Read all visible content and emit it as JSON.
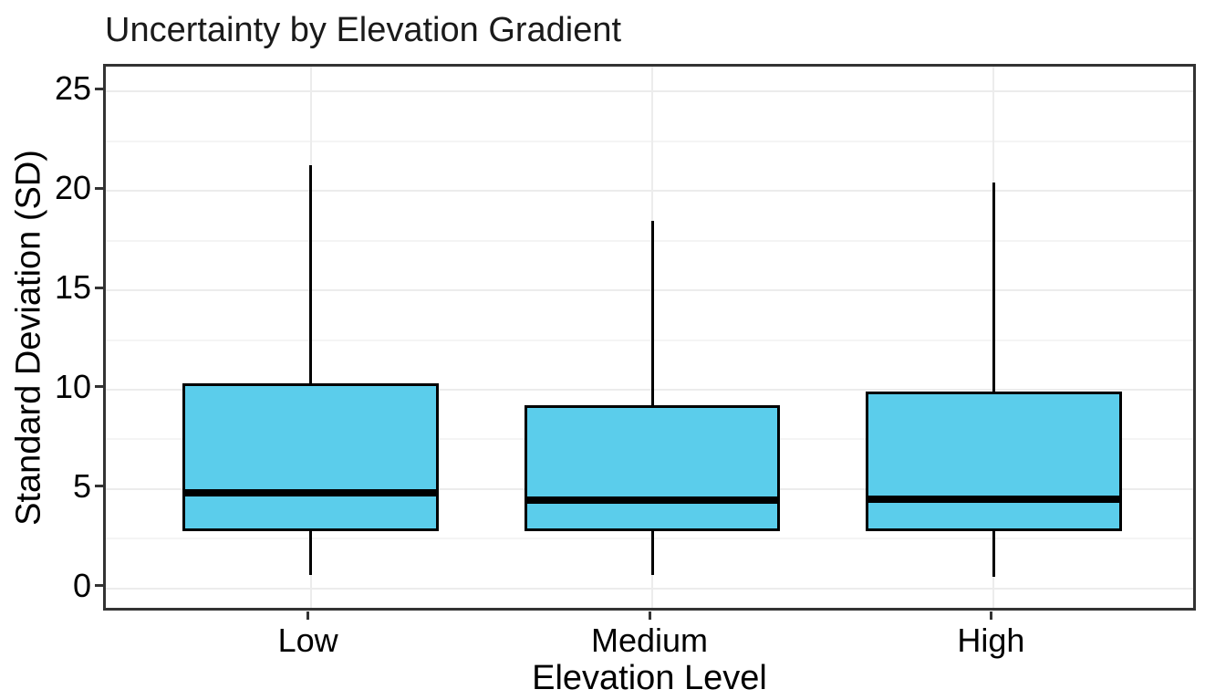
{
  "chart_data": {
    "type": "boxplot",
    "title": "Uncertainty by Elevation Gradient",
    "xlabel": "Elevation Level",
    "ylabel": "Standard Deviation (SD)",
    "categories": [
      "Low",
      "Medium",
      "High"
    ],
    "series": [
      {
        "category": "Low",
        "min": 0.7,
        "q1": 2.9,
        "median": 4.8,
        "q3": 10.3,
        "max": 21.3
      },
      {
        "category": "Medium",
        "min": 0.7,
        "q1": 2.9,
        "median": 4.45,
        "q3": 9.2,
        "max": 18.5
      },
      {
        "category": "High",
        "min": 0.6,
        "q1": 2.9,
        "median": 4.5,
        "q3": 9.9,
        "max": 20.4
      }
    ],
    "y_ticks": [
      0,
      5,
      10,
      15,
      20,
      25
    ],
    "y_minor_ticks": [
      2.5,
      7.5,
      12.5,
      17.5,
      22.5
    ],
    "ylim": [
      -1.25,
      26.25
    ],
    "grid": "on",
    "legend": "none",
    "box_width_fraction": 0.75,
    "colors": {
      "box_fill": "#5BCDEB",
      "box_stroke": "#000000",
      "median": "#000000",
      "whisker": "#000000",
      "panel_border": "#333333",
      "grid_major": "#ECECEC",
      "grid_minor": "#F4F4F4",
      "text": "#000000",
      "background": "#FFFFFF"
    }
  }
}
